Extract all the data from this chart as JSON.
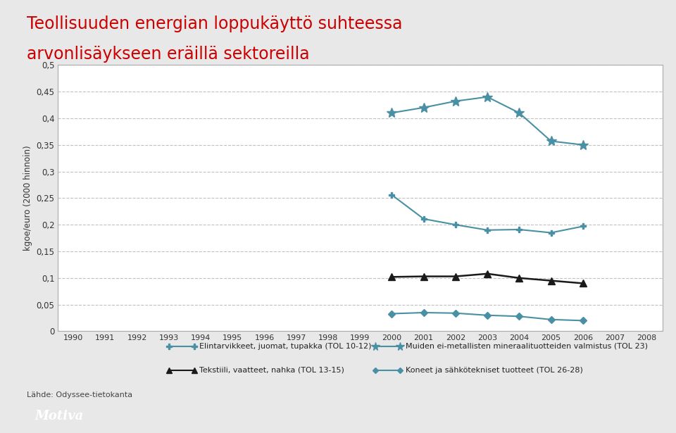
{
  "title_line1": "Teollisuuden energian loppukäyttö suhteessa",
  "title_line2": "arvonlisäykseen eräillä sektoreilla",
  "title_color": "#cc0000",
  "ylabel": "kgoe/euro (2000 hinnoin)",
  "years": [
    2000,
    2001,
    2002,
    2003,
    2004,
    2005,
    2006
  ],
  "all_years": [
    1990,
    1991,
    1992,
    1993,
    1994,
    1995,
    1996,
    1997,
    1998,
    1999,
    2000,
    2001,
    2002,
    2003,
    2004,
    2005,
    2006,
    2007,
    2008
  ],
  "series": [
    {
      "label": "Elintarvikkeet, juomat, tupakka (TOL 10-12)",
      "values": [
        0.256,
        0.211,
        0.2,
        0.19,
        0.191,
        0.185,
        0.197
      ],
      "color": "#4a90a4",
      "marker": "P",
      "linewidth": 1.5,
      "markersize": 6
    },
    {
      "label": "Tekstiili, vaatteet, nahka (TOL 13-15)",
      "values": [
        0.102,
        0.103,
        0.103,
        0.108,
        0.1,
        0.095,
        0.09
      ],
      "color": "#1a1a1a",
      "marker": "^",
      "linewidth": 1.8,
      "markersize": 7
    },
    {
      "label": "Muiden ei-metallisten mineraalituotteiden valmistus (TOL 23)",
      "values": [
        0.41,
        0.42,
        0.432,
        0.44,
        0.41,
        0.357,
        0.35
      ],
      "color": "#4a90a4",
      "marker": "*",
      "linewidth": 1.5,
      "markersize": 10
    },
    {
      "label": "Koneet ja sähkötekniset tuotteet (TOL 26-28)",
      "values": [
        0.033,
        0.035,
        0.034,
        0.03,
        0.028,
        0.022,
        0.02
      ],
      "color": "#4a90a4",
      "marker": "D",
      "linewidth": 1.5,
      "markersize": 5
    }
  ],
  "ylim": [
    0,
    0.5
  ],
  "yticks": [
    0,
    0.05,
    0.1,
    0.15,
    0.2,
    0.25,
    0.3,
    0.35,
    0.4,
    0.45,
    0.5
  ],
  "ytick_labels": [
    "0",
    "0,05",
    "0,1",
    "0,15",
    "0,2",
    "0,25",
    "0,3",
    "0,35",
    "0,4",
    "0,45",
    "0,5"
  ],
  "bg_color": "#e8e8e8",
  "plot_bg_color": "#ffffff",
  "grid_color": "#bbbbbb",
  "source_text": "Lähde: Odyssee-tietokanta",
  "motiva_text": "Motiva",
  "motiva_bg": "#cc0000",
  "motiva_text_color": "#ffffff",
  "legend": [
    {
      "label": "Elintarvikkeet, juomat, tupakka (TOL 10-12)",
      "color": "#4a90a4",
      "marker": "P"
    },
    {
      "label": "Tekstiili, vaatteet, nahka (TOL 13-15)",
      "color": "#1a1a1a",
      "marker": "^"
    },
    {
      "label": "Muiden ei-metallisten mineraalituotteiden valmistus (TOL 23)",
      "color": "#4a90a4",
      "marker": "*"
    },
    {
      "label": "Koneet ja sähkötekniset tuotteet (TOL 26-28)",
      "color": "#4a90a4",
      "marker": "D"
    }
  ]
}
